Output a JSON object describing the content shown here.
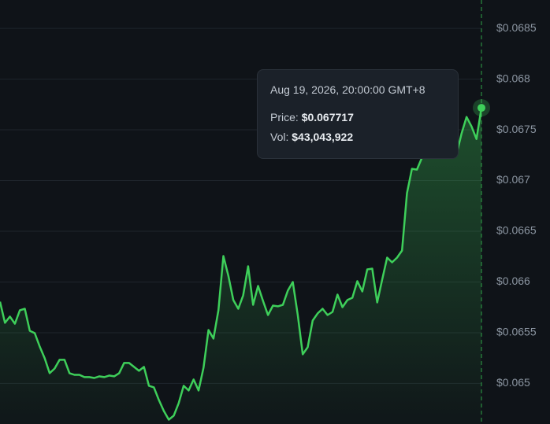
{
  "chart_data": {
    "type": "line",
    "values": [
      0.065806,
      0.065597,
      0.065659,
      0.065589,
      0.065721,
      0.065736,
      0.065519,
      0.065496,
      0.065364,
      0.065248,
      0.065101,
      0.065147,
      0.065233,
      0.065233,
      0.065101,
      0.065085,
      0.065085,
      0.065062,
      0.065062,
      0.065054,
      0.06507,
      0.065062,
      0.065078,
      0.06507,
      0.065101,
      0.065202,
      0.065202,
      0.065163,
      0.065124,
      0.065163,
      0.064977,
      0.064961,
      0.064837,
      0.064729,
      0.064643,
      0.064682,
      0.064806,
      0.064977,
      0.06493,
      0.065039,
      0.06493,
      0.065155,
      0.065527,
      0.065442,
      0.065721,
      0.066256,
      0.066062,
      0.065822,
      0.065736,
      0.065868,
      0.066155,
      0.065775,
      0.065961,
      0.065814,
      0.065674,
      0.065767,
      0.06576,
      0.065775,
      0.065915,
      0.066,
      0.065674,
      0.065287,
      0.065357,
      0.06562,
      0.06569,
      0.065736,
      0.065674,
      0.065705,
      0.065876,
      0.065752,
      0.065822,
      0.065845,
      0.066008,
      0.065907,
      0.066124,
      0.066132,
      0.065798,
      0.066023,
      0.06624,
      0.066194,
      0.06624,
      0.06631,
      0.066876,
      0.067116,
      0.067108,
      0.067224,
      0.067263,
      0.067224,
      0.067224,
      0.067263,
      0.067232,
      0.06724,
      0.067263,
      0.067465,
      0.067627,
      0.067534,
      0.06741,
      0.067717
    ],
    "color": "#3ecf5a",
    "ylim": [
      0.0646,
      0.06878
    ],
    "yticks": [
      {
        "value": 0.065,
        "label": "$0.065"
      },
      {
        "value": 0.0655,
        "label": "$0.0655"
      },
      {
        "value": 0.066,
        "label": "$0.066"
      },
      {
        "value": 0.0665,
        "label": "$0.0665"
      },
      {
        "value": 0.067,
        "label": "$0.067"
      },
      {
        "value": 0.0675,
        "label": "$0.0675"
      },
      {
        "value": 0.068,
        "label": "$0.068"
      },
      {
        "value": 0.0685,
        "label": "$0.0685"
      }
    ],
    "grid": true,
    "tooltip": {
      "date": "Aug 19, 2026, 20:00:00 GMT+8",
      "price_label": "Price:",
      "price": "$0.067717",
      "vol_label": "Vol:",
      "vol": "$43,043,922"
    }
  }
}
